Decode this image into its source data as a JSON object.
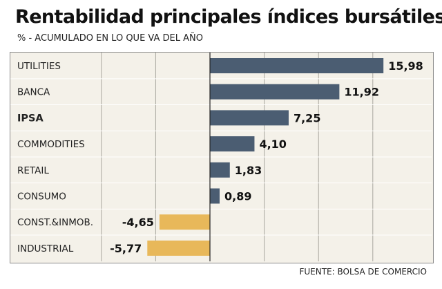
{
  "header": {
    "title": "Rentabilidad principales índices bursátiles",
    "subtitle": "% - ACUMULADO EN LO QUE VA DEL AÑO"
  },
  "footer": {
    "source": "FUENTE: BOLSA DE COMERCIO"
  },
  "colors": {
    "positive": "#4b5d72",
    "negative": "#e8b85a",
    "panel_bg": "#f4f1e9",
    "grid": "#a9a79f"
  },
  "chart_data": {
    "type": "bar",
    "orientation": "horizontal",
    "title": "Rentabilidad principales índices bursátiles",
    "subtitle": "% - ACUMULADO EN LO QUE VA DEL AÑO",
    "categories": [
      "UTILITIES",
      "BANCA",
      "IPSA",
      "COMMODITIES",
      "RETAIL",
      "CONSUMO",
      "CONST.&INMOB.",
      "INDUSTRIAL"
    ],
    "values": [
      15.98,
      11.92,
      7.25,
      4.1,
      1.83,
      0.89,
      -4.65,
      -5.77
    ],
    "value_labels": [
      "15,98",
      "11,92",
      "7,25",
      "4,10",
      "1,83",
      "0,89",
      "-4,65",
      "-5,77"
    ],
    "bold_categories": [
      "IPSA"
    ],
    "xlim": [
      -10,
      16
    ],
    "grid": true,
    "source": "FUENTE: BOLSA DE COMERCIO"
  }
}
